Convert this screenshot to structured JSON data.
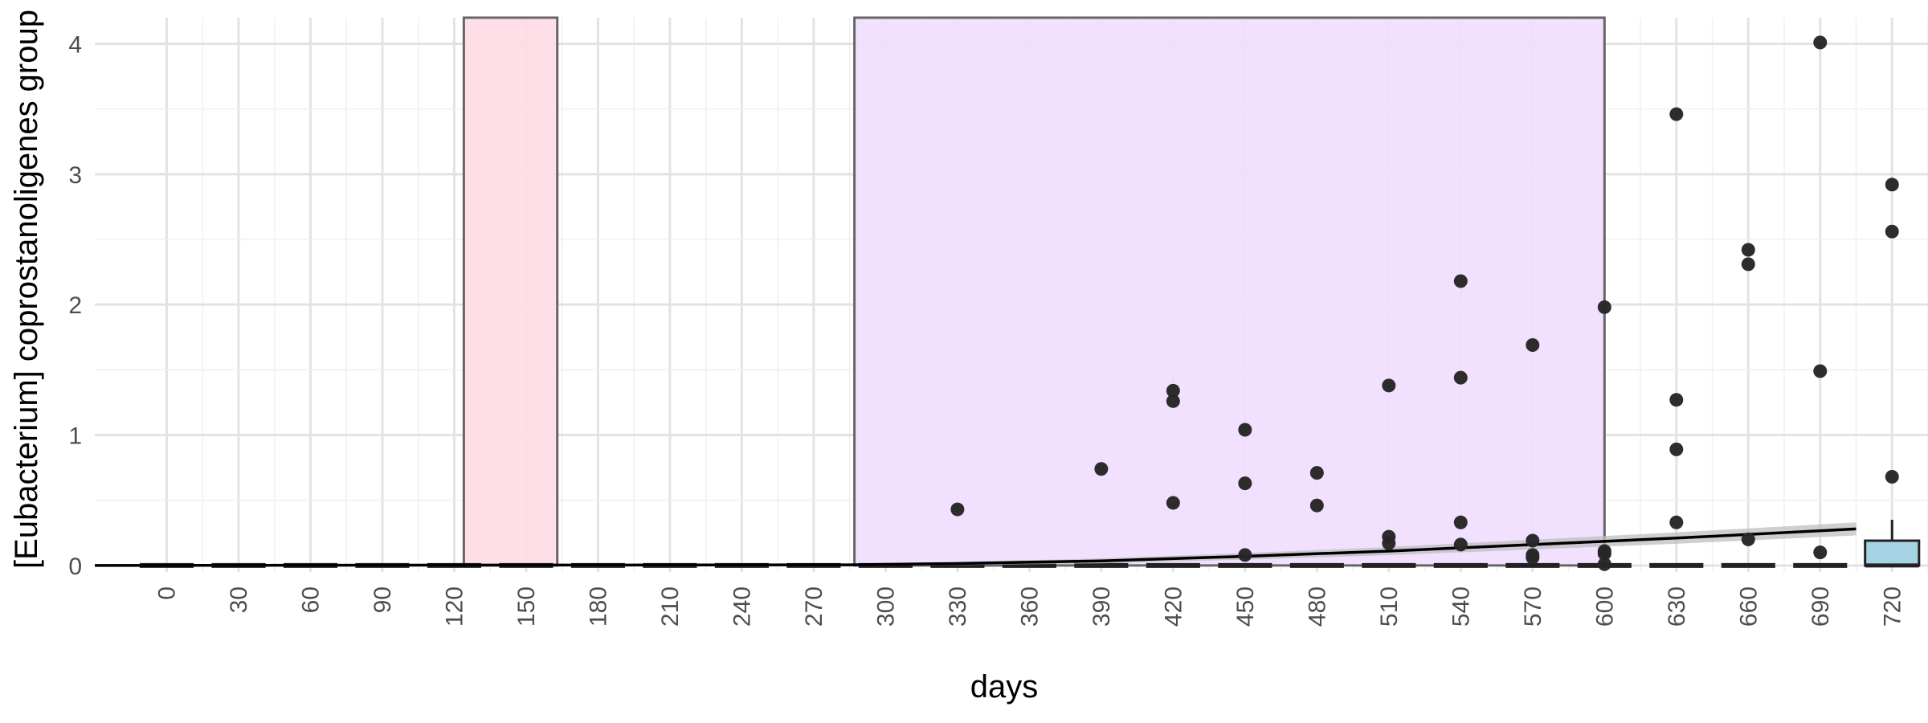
{
  "chart_data": {
    "type": "boxplot",
    "xlabel": "days",
    "ylabel": "[Eubacterium] coprostanoligenes group",
    "x_ticks": [
      0,
      30,
      60,
      90,
      120,
      150,
      180,
      210,
      240,
      270,
      300,
      330,
      360,
      390,
      420,
      450,
      480,
      510,
      540,
      570,
      600,
      630,
      660,
      690,
      720
    ],
    "y_ticks": [
      0,
      1,
      2,
      3,
      4
    ],
    "xlim": [
      -30,
      735
    ],
    "ylim": [
      -0.05,
      4.2
    ],
    "grid": true,
    "highlight_regions": [
      {
        "x_start": 124,
        "x_end": 163,
        "color": "#ffdce4"
      },
      {
        "x_start": 287,
        "x_end": 600,
        "color": "#f1ddff"
      }
    ],
    "boxes": [
      {
        "x": 0,
        "q1": 0,
        "median": 0,
        "q3": 0
      },
      {
        "x": 30,
        "q1": 0,
        "median": 0,
        "q3": 0
      },
      {
        "x": 60,
        "q1": 0,
        "median": 0,
        "q3": 0
      },
      {
        "x": 90,
        "q1": 0,
        "median": 0,
        "q3": 0
      },
      {
        "x": 120,
        "q1": 0,
        "median": 0,
        "q3": 0
      },
      {
        "x": 150,
        "q1": 0,
        "median": 0,
        "q3": 0
      },
      {
        "x": 180,
        "q1": 0,
        "median": 0,
        "q3": 0
      },
      {
        "x": 210,
        "q1": 0,
        "median": 0,
        "q3": 0
      },
      {
        "x": 240,
        "q1": 0,
        "median": 0,
        "q3": 0
      },
      {
        "x": 270,
        "q1": 0,
        "median": 0,
        "q3": 0
      },
      {
        "x": 300,
        "q1": 0,
        "median": 0,
        "q3": 0
      },
      {
        "x": 330,
        "q1": 0,
        "median": 0,
        "q3": 0
      },
      {
        "x": 360,
        "q1": 0,
        "median": 0,
        "q3": 0
      },
      {
        "x": 390,
        "q1": 0,
        "median": 0,
        "q3": 0
      },
      {
        "x": 420,
        "q1": 0,
        "median": 0,
        "q3": 0
      },
      {
        "x": 450,
        "q1": 0,
        "median": 0,
        "q3": 0
      },
      {
        "x": 480,
        "q1": 0,
        "median": 0,
        "q3": 0
      },
      {
        "x": 510,
        "q1": 0,
        "median": 0,
        "q3": 0
      },
      {
        "x": 540,
        "q1": 0,
        "median": 0,
        "q3": 0
      },
      {
        "x": 570,
        "q1": 0,
        "median": 0,
        "q3": 0
      },
      {
        "x": 600,
        "q1": 0,
        "median": 0,
        "q3": 0
      },
      {
        "x": 630,
        "q1": 0,
        "median": 0,
        "q3": 0
      },
      {
        "x": 660,
        "q1": 0,
        "median": 0,
        "q3": 0
      },
      {
        "x": 690,
        "q1": 0,
        "median": 0,
        "q3": 0
      },
      {
        "x": 720,
        "q1": 0,
        "median": 0,
        "q3": 0.19,
        "whisker_high": 0.35,
        "fill": "#a6d3e4"
      }
    ],
    "points": [
      {
        "x": 330,
        "y": 0.43
      },
      {
        "x": 390,
        "y": 0.74
      },
      {
        "x": 420,
        "y": 1.34
      },
      {
        "x": 420,
        "y": 1.26
      },
      {
        "x": 420,
        "y": 0.48
      },
      {
        "x": 450,
        "y": 1.04
      },
      {
        "x": 450,
        "y": 0.63
      },
      {
        "x": 450,
        "y": 0.08
      },
      {
        "x": 480,
        "y": 0.71
      },
      {
        "x": 480,
        "y": 0.46
      },
      {
        "x": 510,
        "y": 1.38
      },
      {
        "x": 510,
        "y": 0.22
      },
      {
        "x": 510,
        "y": 0.17
      },
      {
        "x": 540,
        "y": 2.18
      },
      {
        "x": 540,
        "y": 1.44
      },
      {
        "x": 540,
        "y": 0.33
      },
      {
        "x": 540,
        "y": 0.16
      },
      {
        "x": 570,
        "y": 1.69
      },
      {
        "x": 570,
        "y": 0.19
      },
      {
        "x": 570,
        "y": 0.08
      },
      {
        "x": 570,
        "y": 0.06
      },
      {
        "x": 600,
        "y": 1.98
      },
      {
        "x": 600,
        "y": 0.11
      },
      {
        "x": 600,
        "y": 0.09
      },
      {
        "x": 600,
        "y": 0.01
      },
      {
        "x": 630,
        "y": 3.46
      },
      {
        "x": 630,
        "y": 1.27
      },
      {
        "x": 630,
        "y": 0.89
      },
      {
        "x": 630,
        "y": 0.33
      },
      {
        "x": 660,
        "y": 2.42
      },
      {
        "x": 660,
        "y": 2.31
      },
      {
        "x": 660,
        "y": 0.2
      },
      {
        "x": 690,
        "y": 4.01
      },
      {
        "x": 690,
        "y": 1.49
      },
      {
        "x": 690,
        "y": 0.1
      },
      {
        "x": 720,
        "y": 2.92
      },
      {
        "x": 720,
        "y": 2.56
      },
      {
        "x": 720,
        "y": 0.68
      }
    ],
    "trend": {
      "x": [
        -30,
        285,
        330,
        390,
        450,
        510,
        570,
        630,
        705
      ],
      "y": [
        0,
        0.005,
        0.015,
        0.035,
        0.07,
        0.11,
        0.16,
        0.21,
        0.28
      ],
      "ci_width": 0.05,
      "color": "#000000",
      "ci_color": "#bfbfbf"
    }
  }
}
